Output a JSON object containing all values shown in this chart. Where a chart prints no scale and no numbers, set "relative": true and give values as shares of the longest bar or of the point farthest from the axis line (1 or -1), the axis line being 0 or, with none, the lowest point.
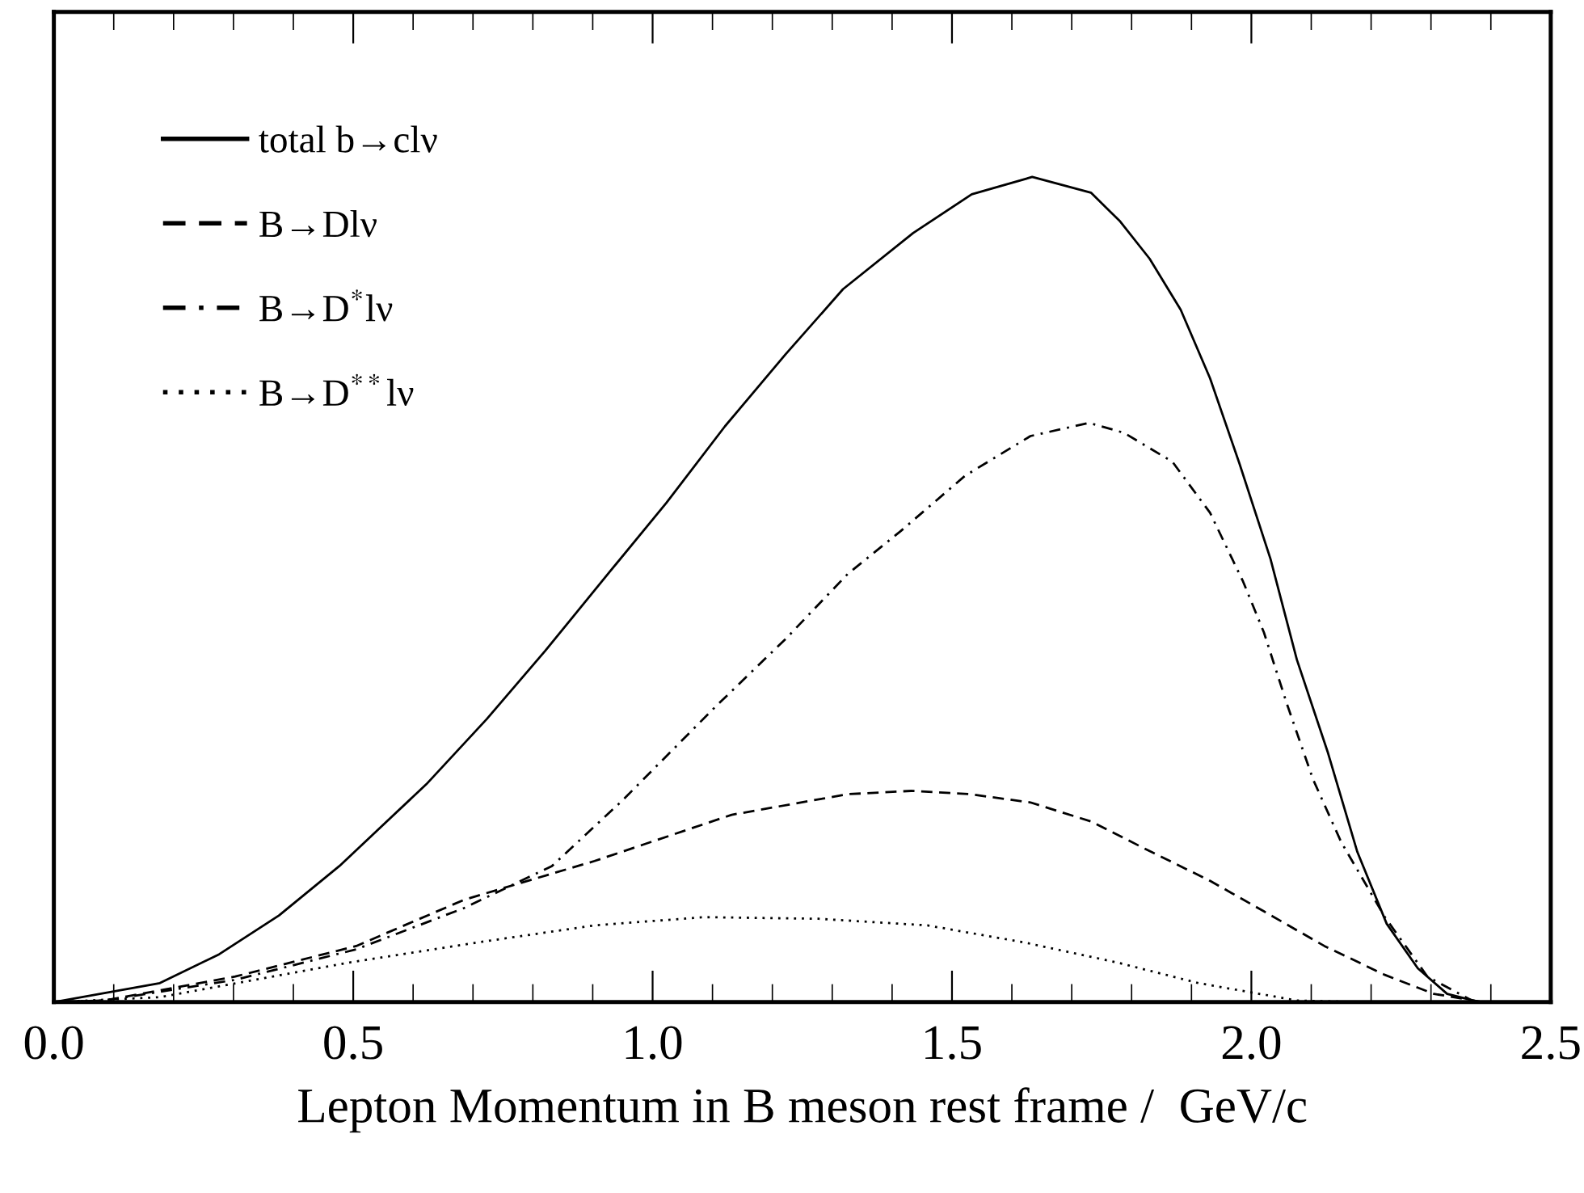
{
  "chart_data": {
    "type": "line",
    "relative": true,
    "xlabel": "Lepton Momentum in B meson rest frame /  GeV/c",
    "xlim": [
      0,
      2.5
    ],
    "xticks": [
      {
        "value": 0,
        "label": "0.0"
      },
      {
        "value": 0.5,
        "label": "0.5"
      },
      {
        "value": 1.0,
        "label": "1.0"
      },
      {
        "value": 1.5,
        "label": "1.5"
      },
      {
        "value": 2.0,
        "label": "2.0"
      },
      {
        "value": 2.5,
        "label": "2.5"
      }
    ],
    "legend": "top left",
    "grid": false,
    "marker": "none",
    "series": [
      {
        "name": "total b→clν",
        "color": "#000000",
        "line_style": "solid",
        "x": [
          0.0,
          0.177,
          0.276,
          0.376,
          0.477,
          0.622,
          0.723,
          0.821,
          0.93,
          1.023,
          1.121,
          1.222,
          1.318,
          1.435,
          1.533,
          1.634,
          1.732,
          1.781,
          1.83,
          1.882,
          1.931,
          1.98,
          2.032,
          2.076,
          2.128,
          2.177,
          2.226,
          2.278,
          2.327,
          2.381
        ],
        "values": [
          0,
          0.023,
          0.058,
          0.105,
          0.165,
          0.264,
          0.343,
          0.426,
          0.523,
          0.605,
          0.698,
          0.785,
          0.864,
          0.932,
          0.979,
          1.0,
          0.981,
          0.946,
          0.901,
          0.839,
          0.756,
          0.653,
          0.537,
          0.415,
          0.302,
          0.182,
          0.095,
          0.041,
          0.01,
          0
        ]
      },
      {
        "name": "B→Dlν",
        "color": "#000000",
        "line_style": "dashed",
        "x": [
          0.0,
          0.085,
          0.303,
          0.505,
          0.685,
          0.903,
          1.132,
          1.326,
          1.432,
          1.53,
          1.631,
          1.732,
          1.822,
          1.931,
          2.021,
          2.122,
          2.223,
          2.305,
          2.387
        ],
        "values": [
          0,
          0.002,
          0.031,
          0.068,
          0.124,
          0.171,
          0.227,
          0.252,
          0.256,
          0.252,
          0.242,
          0.219,
          0.186,
          0.147,
          0.11,
          0.068,
          0.033,
          0.01,
          0
        ]
      },
      {
        "name": "B→D$^{*}$lν",
        "color": "#000000",
        "line_style": "dashdot",
        "x": [
          0.0,
          0.085,
          0.303,
          0.505,
          0.685,
          0.832,
          0.949,
          1.105,
          1.222,
          1.326,
          1.413,
          1.522,
          1.631,
          1.729,
          1.787,
          1.868,
          1.931,
          1.986,
          2.021,
          2.06,
          2.103,
          2.15,
          2.223,
          2.294,
          2.368
        ],
        "values": [
          0,
          0.002,
          0.027,
          0.064,
          0.114,
          0.165,
          0.244,
          0.358,
          0.44,
          0.519,
          0.57,
          0.638,
          0.686,
          0.702,
          0.69,
          0.655,
          0.593,
          0.51,
          0.448,
          0.36,
          0.27,
          0.194,
          0.103,
          0.031,
          0.002
        ]
      },
      {
        "name": "B→D$^{**}$lν",
        "color": "#000000",
        "line_style": "dotted",
        "x": [
          0.0,
          0.177,
          0.494,
          0.723,
          0.903,
          1.086,
          1.277,
          1.459,
          1.623,
          1.776,
          1.912,
          2.076,
          2.185
        ],
        "values": [
          0,
          0.006,
          0.048,
          0.074,
          0.093,
          0.103,
          0.101,
          0.093,
          0.072,
          0.048,
          0.023,
          0.002,
          0
        ]
      }
    ]
  }
}
